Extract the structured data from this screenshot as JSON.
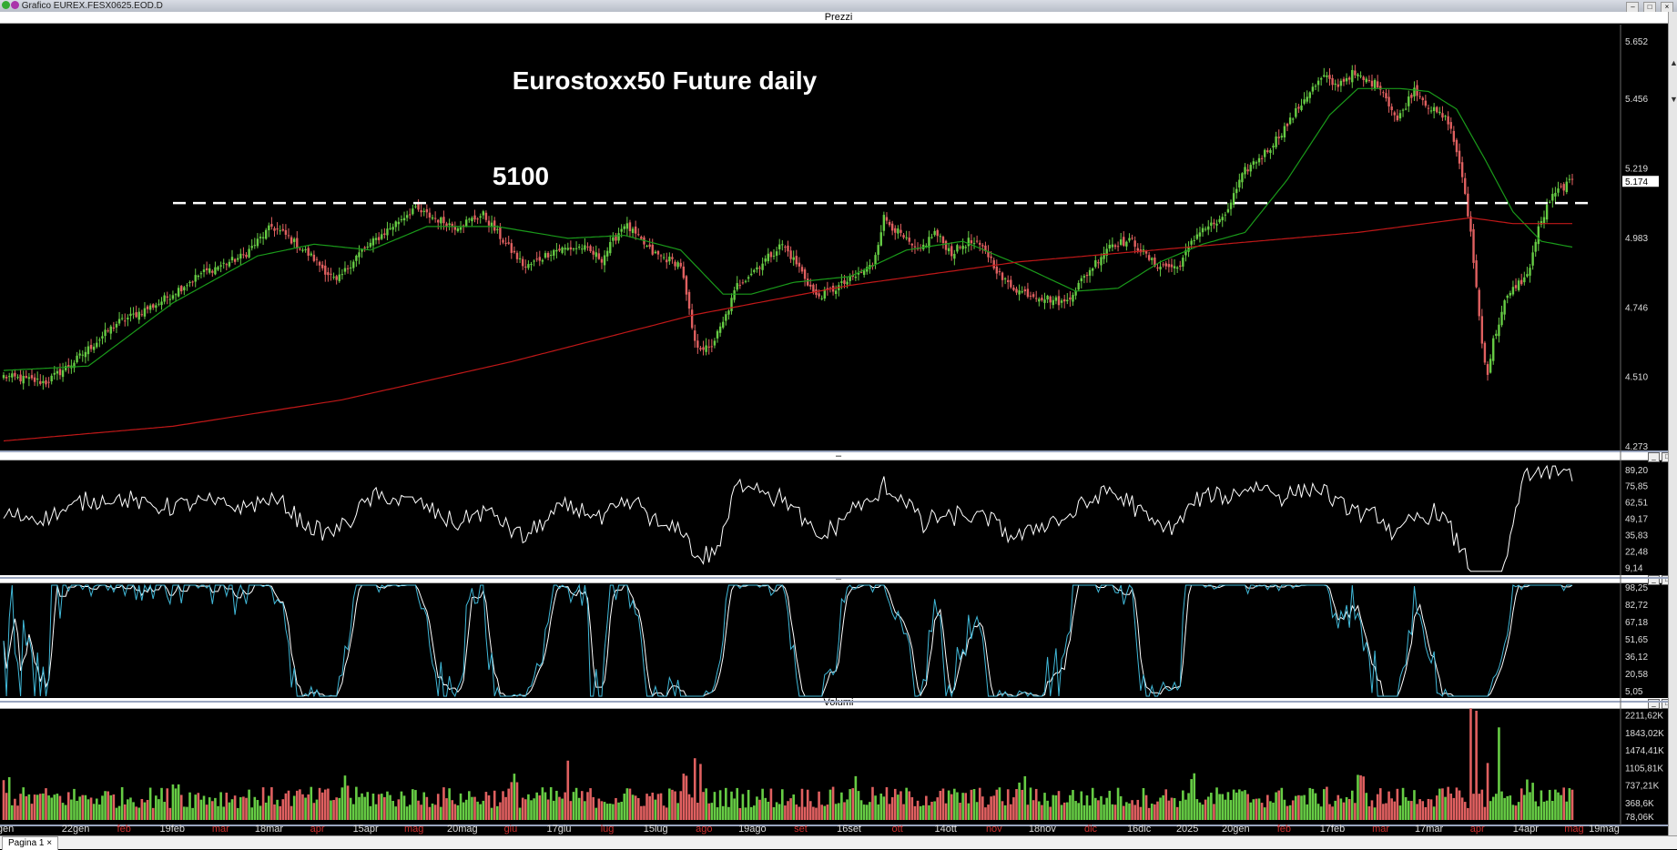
{
  "window": {
    "title": "Grafico EUREX.FESX0625.EOD.D",
    "controls": [
      "–",
      "□",
      "×"
    ]
  },
  "panels": {
    "price": {
      "name": "Prezzi"
    },
    "rsi": {
      "name": "–"
    },
    "stoch": {
      "name": "–"
    },
    "volume": {
      "name": "Volumi"
    }
  },
  "annotations": {
    "title": "Eurostoxx50 Future daily",
    "level_label": "5100"
  },
  "footer": {
    "tab_label": "Pagina 1",
    "tab_close": "×"
  },
  "colors": {
    "background": "#000000",
    "bull": "#66cc44",
    "bear": "#e06060",
    "ma_short": "#1a9a1a",
    "ma_long": "#c01818",
    "rsi_line": "#ffffff",
    "stoch_k": "#40b8d8",
    "stoch_d": "#ffffff",
    "dashed_level": "#ffffff"
  },
  "chart_data": [
    {
      "type": "candlestick",
      "panel": "price",
      "title": "Eurostoxx50 Future daily",
      "y_ticks": [
        "5.652",
        "5.456",
        "5.219",
        "5.174",
        "4.983",
        "4.746",
        "4.510",
        "4.273"
      ],
      "ylim": [
        4273,
        5652
      ],
      "last_value": "5.174",
      "horizontal_level": 5100,
      "x_ticks": [
        "gen",
        "22gen",
        "feb",
        "19feb",
        "mar",
        "18mar",
        "apr",
        "15apr",
        "mag",
        "20mag",
        "giu",
        "17giu",
        "lug",
        "15lug",
        "ago",
        "19ago",
        "set",
        "16set",
        "ott",
        "14ott",
        "nov",
        "18nov",
        "dic",
        "16dic",
        "2025",
        "20gen",
        "feb",
        "17feb",
        "mar",
        "17mar",
        "apr",
        "14apr",
        "mag",
        "19mag"
      ],
      "x_tick_months": [
        "feb",
        "mar",
        "apr",
        "mag",
        "giu",
        "lug",
        "ago",
        "set",
        "ott",
        "nov",
        "dic",
        "feb",
        "mar",
        "apr",
        "mag"
      ],
      "keypoints_close": [
        [
          0,
          4510
        ],
        [
          15,
          4490
        ],
        [
          25,
          4560
        ],
        [
          40,
          4690
        ],
        [
          55,
          4760
        ],
        [
          70,
          4860
        ],
        [
          85,
          4920
        ],
        [
          95,
          5020
        ],
        [
          100,
          4990
        ],
        [
          110,
          4910
        ],
        [
          118,
          4830
        ],
        [
          125,
          4920
        ],
        [
          130,
          4960
        ],
        [
          145,
          5080
        ],
        [
          150,
          5060
        ],
        [
          160,
          5020
        ],
        [
          170,
          5060
        ],
        [
          178,
          4960
        ],
        [
          185,
          4880
        ],
        [
          195,
          4940
        ],
        [
          205,
          4950
        ],
        [
          212,
          4910
        ],
        [
          220,
          5030
        ],
        [
          230,
          4930
        ],
        [
          240,
          4890
        ],
        [
          245,
          4620
        ],
        [
          250,
          4600
        ],
        [
          255,
          4690
        ],
        [
          260,
          4820
        ],
        [
          268,
          4890
        ],
        [
          276,
          4960
        ],
        [
          282,
          4880
        ],
        [
          288,
          4780
        ],
        [
          295,
          4810
        ],
        [
          302,
          4850
        ],
        [
          308,
          4890
        ],
        [
          312,
          5050
        ],
        [
          318,
          4990
        ],
        [
          324,
          4930
        ],
        [
          330,
          5000
        ],
        [
          336,
          4930
        ],
        [
          342,
          4970
        ],
        [
          348,
          4940
        ],
        [
          354,
          4840
        ],
        [
          360,
          4800
        ],
        [
          368,
          4780
        ],
        [
          376,
          4760
        ],
        [
          384,
          4860
        ],
        [
          392,
          4960
        ],
        [
          400,
          4970
        ],
        [
          408,
          4890
        ],
        [
          416,
          4880
        ],
        [
          424,
          5010
        ],
        [
          432,
          5040
        ],
        [
          440,
          5210
        ],
        [
          448,
          5280
        ],
        [
          456,
          5380
        ],
        [
          462,
          5470
        ],
        [
          468,
          5530
        ],
        [
          472,
          5500
        ],
        [
          478,
          5540
        ],
        [
          482,
          5520
        ],
        [
          488,
          5500
        ],
        [
          494,
          5380
        ],
        [
          500,
          5490
        ],
        [
          506,
          5420
        ],
        [
          512,
          5380
        ],
        [
          516,
          5240
        ],
        [
          520,
          5000
        ],
        [
          524,
          4620
        ],
        [
          526,
          4520
        ],
        [
          528,
          4630
        ],
        [
          532,
          4760
        ],
        [
          536,
          4820
        ],
        [
          540,
          4850
        ],
        [
          544,
          5010
        ],
        [
          548,
          5110
        ],
        [
          552,
          5150
        ],
        [
          556,
          5174
        ]
      ],
      "series": [
        {
          "name": "MA short",
          "keypoints": [
            [
              0,
              4530
            ],
            [
              30,
              4545
            ],
            [
              60,
              4760
            ],
            [
              90,
              4920
            ],
            [
              110,
              4960
            ],
            [
              130,
              4940
            ],
            [
              150,
              5020
            ],
            [
              175,
              5020
            ],
            [
              200,
              4980
            ],
            [
              220,
              4990
            ],
            [
              240,
              4940
            ],
            [
              255,
              4790
            ],
            [
              265,
              4790
            ],
            [
              280,
              4830
            ],
            [
              300,
              4850
            ],
            [
              320,
              4940
            ],
            [
              340,
              4970
            ],
            [
              360,
              4890
            ],
            [
              380,
              4800
            ],
            [
              395,
              4810
            ],
            [
              410,
              4900
            ],
            [
              425,
              4960
            ],
            [
              440,
              5000
            ],
            [
              455,
              5180
            ],
            [
              470,
              5400
            ],
            [
              480,
              5490
            ],
            [
              495,
              5490
            ],
            [
              505,
              5480
            ],
            [
              515,
              5420
            ],
            [
              525,
              5250
            ],
            [
              535,
              5070
            ],
            [
              545,
              4970
            ],
            [
              556,
              4950
            ]
          ]
        },
        {
          "name": "MA long",
          "keypoints": [
            [
              0,
              4290
            ],
            [
              60,
              4340
            ],
            [
              120,
              4430
            ],
            [
              180,
              4560
            ],
            [
              245,
              4720
            ],
            [
              300,
              4820
            ],
            [
              360,
              4900
            ],
            [
              420,
              4950
            ],
            [
              480,
              5000
            ],
            [
              520,
              5050
            ],
            [
              535,
              5030
            ],
            [
              556,
              5030
            ]
          ]
        }
      ]
    },
    {
      "type": "line",
      "panel": "rsi",
      "y_ticks": [
        "89,20",
        "75,85",
        "62,51",
        "49,17",
        "35,83",
        "22,48",
        "9,14"
      ],
      "ylim": [
        5,
        95
      ]
    },
    {
      "type": "line",
      "panel": "stochastic",
      "y_ticks": [
        "98,25",
        "82,72",
        "67,18",
        "51,65",
        "36,12",
        "20,58",
        "5,05"
      ],
      "ylim": [
        0,
        100
      ]
    },
    {
      "type": "bar",
      "panel": "volume",
      "y_ticks": [
        "2211,62K",
        "1843,02K",
        "1474,41K",
        "1105,81K",
        "737,21K",
        "368,6K",
        "78,06K"
      ],
      "ylim": [
        0,
        2300
      ],
      "spikes": [
        [
          245,
          1300
        ],
        [
          247,
          1180
        ],
        [
          200,
          1250
        ],
        [
          520,
          2350
        ],
        [
          522,
          2300
        ],
        [
          530,
          1950
        ],
        [
          526,
          1200
        ]
      ]
    }
  ]
}
